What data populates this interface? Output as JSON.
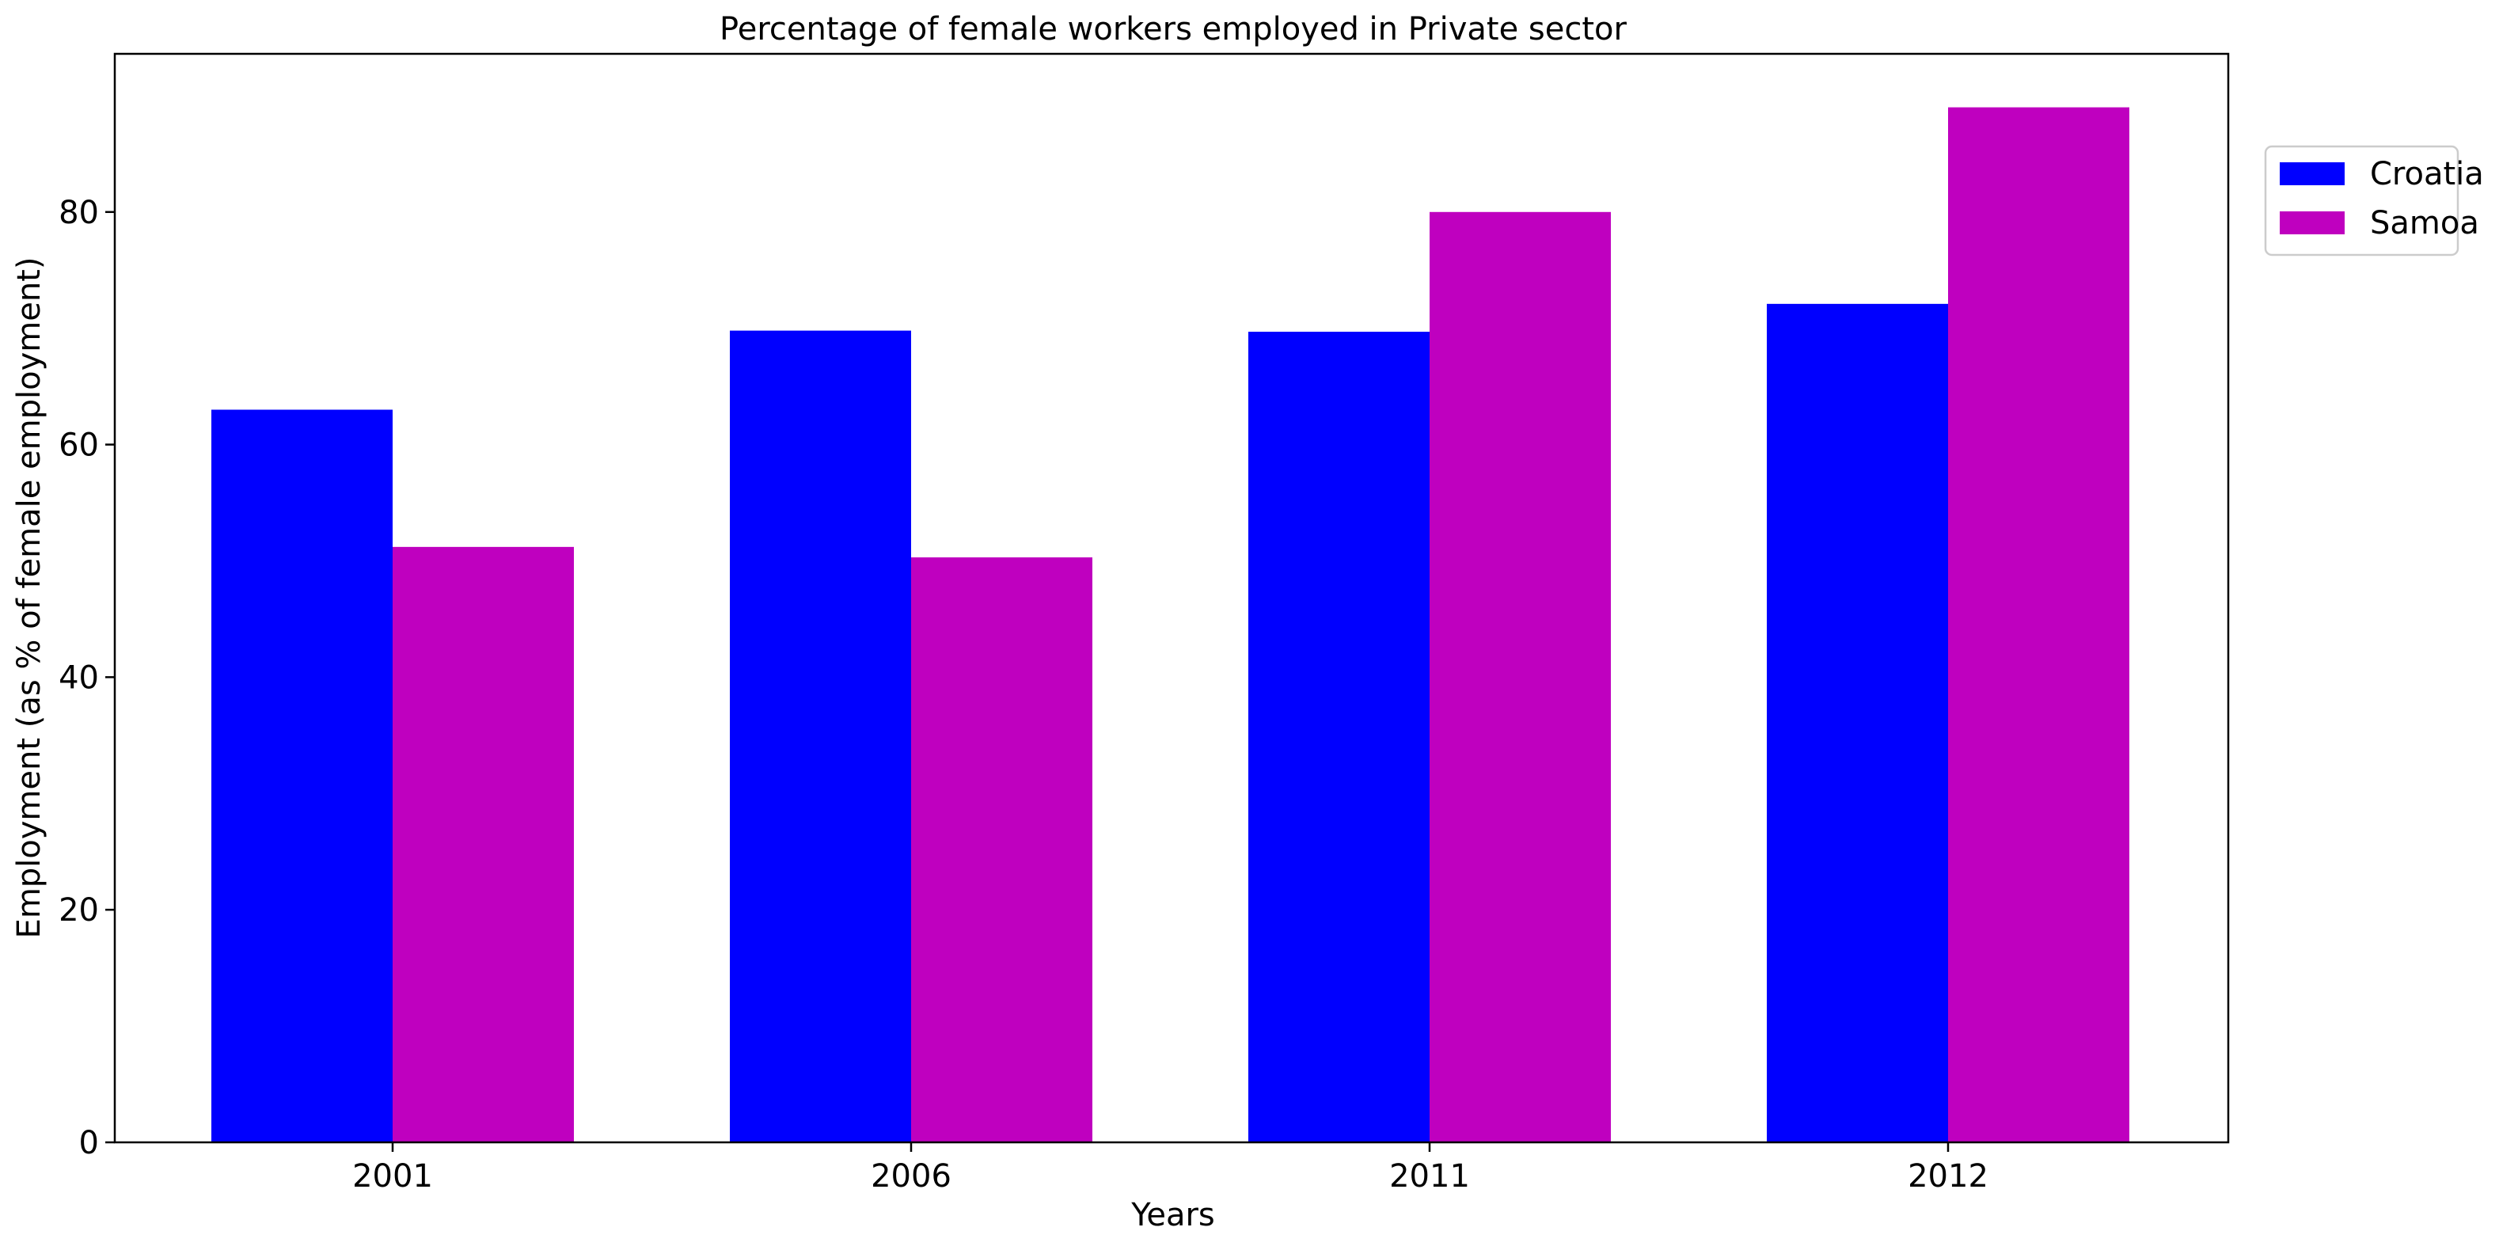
{
  "chart_data": {
    "type": "bar",
    "title": "Percentage of female workers employed in Private sector",
    "xlabel": "Years",
    "ylabel": "Employment (as % of female employment)",
    "categories": [
      "2001",
      "2006",
      "2011",
      "2012"
    ],
    "series": [
      {
        "name": "Croatia",
        "color": "#0000ff",
        "values": [
          63.0,
          69.8,
          69.7,
          72.1
        ]
      },
      {
        "name": "Samoa",
        "color": "#bf00bf",
        "values": [
          51.2,
          50.3,
          80.0,
          89.0
        ]
      }
    ],
    "ylim": [
      0,
      93.6
    ],
    "yticks": [
      0,
      20,
      40,
      60,
      80
    ],
    "grid": false,
    "legend_position": "top-right, outside plot area"
  }
}
